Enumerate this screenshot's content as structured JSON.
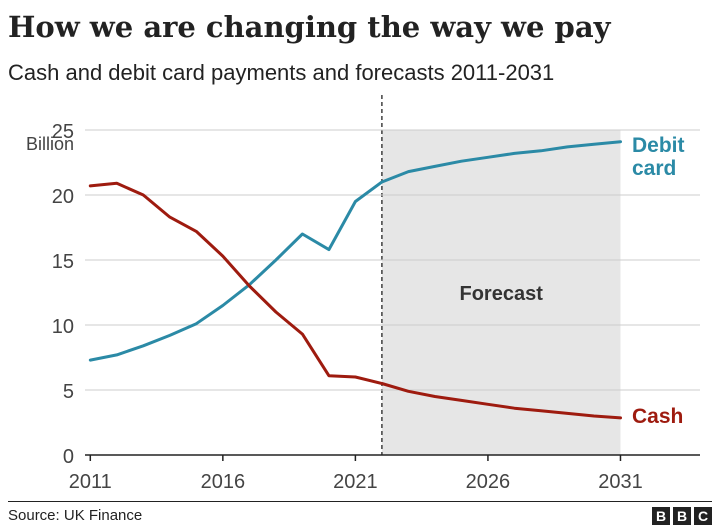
{
  "chart_data": {
    "type": "line",
    "title": "How we are changing the way we pay",
    "subtitle": "Cash and debit card payments and forecasts 2011-2031",
    "ylabel": "Billion",
    "xlim": [
      2010.8,
      2034
    ],
    "ylim": [
      0,
      25
    ],
    "x_ticks": [
      2011,
      2016,
      2021,
      2026,
      2031
    ],
    "y_ticks": [
      0,
      5,
      10,
      15,
      20,
      25
    ],
    "grid": true,
    "forecast": {
      "label": "Forecast",
      "start": 2022,
      "end": 2031
    },
    "series": [
      {
        "name": "Debit card",
        "color": "#2b8aa6",
        "points": [
          [
            2011,
            7.3
          ],
          [
            2012,
            7.7
          ],
          [
            2013,
            8.4
          ],
          [
            2014,
            9.2
          ],
          [
            2015,
            10.1
          ],
          [
            2016,
            11.5
          ],
          [
            2017,
            13.1
          ],
          [
            2018,
            15.0
          ],
          [
            2019,
            17.0
          ],
          [
            2020,
            15.8
          ],
          [
            2021,
            19.5
          ],
          [
            2022,
            21.0
          ],
          [
            2023,
            21.8
          ],
          [
            2024,
            22.2
          ],
          [
            2025,
            22.6
          ],
          [
            2026,
            22.9
          ],
          [
            2027,
            23.2
          ],
          [
            2028,
            23.4
          ],
          [
            2029,
            23.7
          ],
          [
            2030,
            23.9
          ],
          [
            2031,
            24.1
          ]
        ]
      },
      {
        "name": "Cash",
        "color": "#9e1b0f",
        "points": [
          [
            2011,
            20.7
          ],
          [
            2012,
            20.9
          ],
          [
            2013,
            20.0
          ],
          [
            2014,
            18.3
          ],
          [
            2015,
            17.2
          ],
          [
            2016,
            15.3
          ],
          [
            2017,
            13.0
          ],
          [
            2018,
            11.0
          ],
          [
            2019,
            9.3
          ],
          [
            2020,
            6.1
          ],
          [
            2021,
            6.0
          ],
          [
            2022,
            5.5
          ],
          [
            2023,
            4.9
          ],
          [
            2024,
            4.5
          ],
          [
            2025,
            4.2
          ],
          [
            2026,
            3.9
          ],
          [
            2027,
            3.6
          ],
          [
            2028,
            3.4
          ],
          [
            2029,
            3.2
          ],
          [
            2030,
            3.0
          ],
          [
            2031,
            2.85
          ]
        ]
      }
    ]
  },
  "labels": {
    "debit_line1": "Debit",
    "debit_line2": "card",
    "cash": "Cash"
  },
  "footer": {
    "source": "Source: UK Finance",
    "logo_letters": [
      "B",
      "B",
      "C"
    ]
  }
}
